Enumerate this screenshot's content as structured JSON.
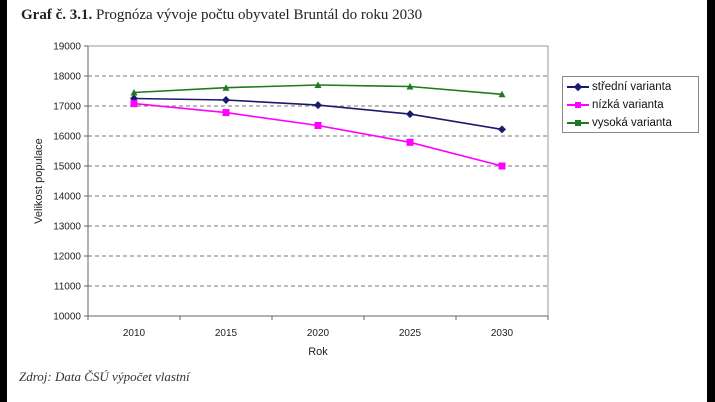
{
  "title_bold": "Graf č. 3.1.",
  "title_rest": " Prognóza vývoje počtu obyvatel Bruntál do roku 2030",
  "source": "Zdroj: Data ČSÚ výpočet vlastní",
  "chart_data": {
    "type": "line",
    "title": "Prognóza vývoje počtu obyvatel Bruntál do roku 2030",
    "xlabel": "Rok",
    "ylabel": "Velikost populace",
    "categories": [
      "2010",
      "2015",
      "2020",
      "2025",
      "2030"
    ],
    "ylim": [
      10000,
      19000
    ],
    "yticks": [
      "10000",
      "11000",
      "12000",
      "13000",
      "14000",
      "15000",
      "16000",
      "17000",
      "18000",
      "19000"
    ],
    "grid": true,
    "legend_position": "right",
    "series": [
      {
        "name": "střední varianta",
        "color": "#1a1a6e",
        "marker": "diamond",
        "values": [
          17250,
          17200,
          17030,
          16730,
          16220
        ]
      },
      {
        "name": "nízká varianta",
        "color": "#ff00ff",
        "marker": "square",
        "values": [
          17080,
          16780,
          16350,
          15790,
          15000
        ]
      },
      {
        "name": "vysoká varianta",
        "color": "#1f7a1f",
        "marker": "triangle",
        "values": [
          17450,
          17610,
          17700,
          17650,
          17390
        ]
      }
    ]
  }
}
